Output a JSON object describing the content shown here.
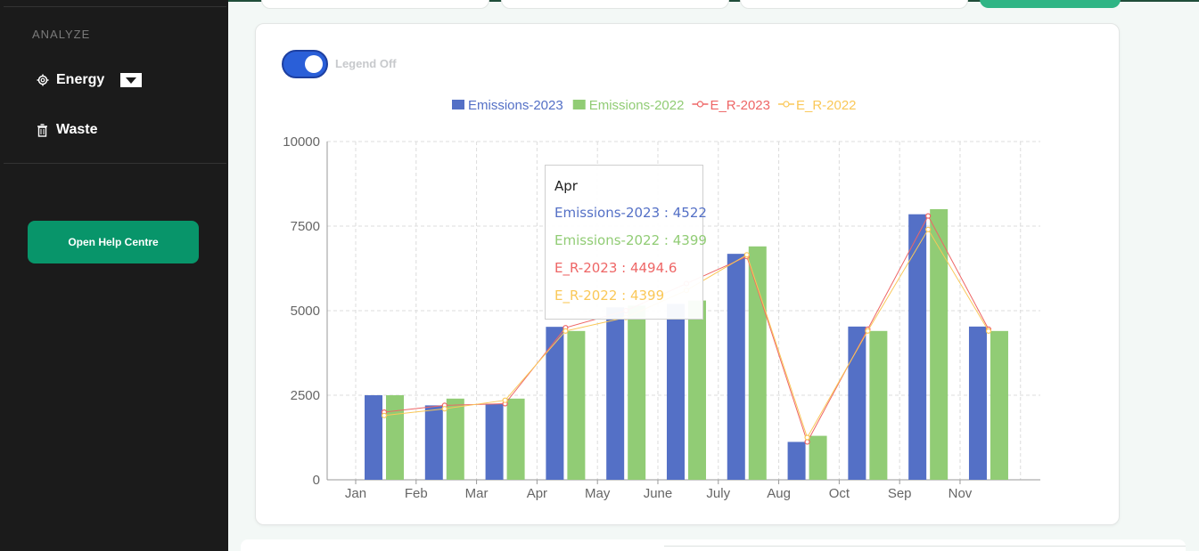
{
  "sidebar": {
    "section_label": "ANALYZE",
    "items": [
      {
        "label": "Energy",
        "icon": "gear-icon"
      },
      {
        "label": "Waste",
        "icon": "trash-icon"
      }
    ],
    "help_button": "Open Help Centre"
  },
  "chart_card": {
    "toggle_label": "Legend Off",
    "toggle_on": true
  },
  "colors": {
    "emissions_2023": "#5470c6",
    "emissions_2022": "#91cc75",
    "er_2023": "#ee6666",
    "er_2022": "#fac858",
    "help_button": "#08956a",
    "toggle": "#2a5fd8"
  },
  "chart_data": {
    "type": "bar",
    "categories": [
      "Jan",
      "Feb",
      "Mar",
      "Apr",
      "May",
      "June",
      "July",
      "Aug",
      "Oct",
      "Sep",
      "Nov"
    ],
    "ylim": [
      0,
      10000
    ],
    "yticks": [
      0,
      2500,
      5000,
      7500,
      10000
    ],
    "legend_position": "top-center",
    "grid": true,
    "series": [
      {
        "name": "Emissions-2023",
        "kind": "bar",
        "color": "#5470c6",
        "values": [
          2500,
          2200,
          2250,
          4522,
          5100,
          5200,
          6680,
          1120,
          4530,
          7850,
          4530
        ]
      },
      {
        "name": "Emissions-2022",
        "kind": "bar",
        "color": "#91cc75",
        "values": [
          2500,
          2400,
          2400,
          4399,
          5150,
          5300,
          6900,
          1300,
          4400,
          8000,
          4399
        ]
      },
      {
        "name": "E_R-2023",
        "kind": "line",
        "color": "#ee6666",
        "values": [
          2000,
          2200,
          2250,
          4494.6,
          5000,
          5800,
          6600,
          1120,
          4450,
          7800,
          4450
        ]
      },
      {
        "name": "E_R-2022",
        "kind": "line",
        "color": "#fac858",
        "values": [
          1900,
          2100,
          2350,
          4399,
          4800,
          5600,
          6650,
          1250,
          4400,
          7400,
          4399
        ]
      }
    ],
    "tooltip": {
      "title": "Apr",
      "rows": [
        {
          "text": "Emissions-2023 : 4522",
          "color": "#5470c6"
        },
        {
          "text": "Emissions-2022 : 4399",
          "color": "#91cc75"
        },
        {
          "text": "E_R-2023 : 4494.6",
          "color": "#ee6666"
        },
        {
          "text": "E_R-2022 : 4399",
          "color": "#fac858"
        }
      ]
    }
  }
}
